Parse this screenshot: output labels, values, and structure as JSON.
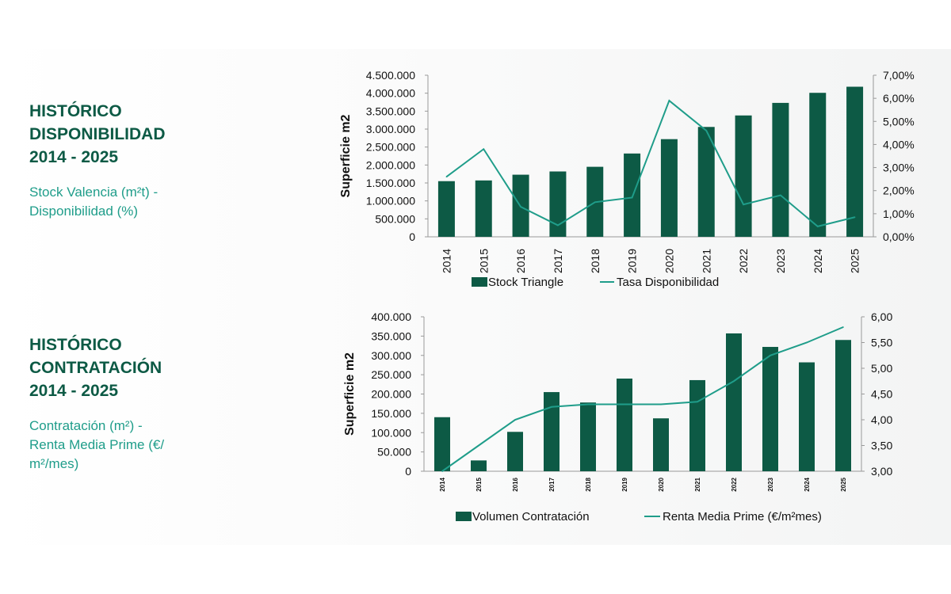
{
  "panels": [
    {
      "title_lines": [
        "HISTÓRICO",
        "DISPONIBILIDAD",
        "2014 - 2025"
      ],
      "subtitle_lines": [
        "Stock Valencia (m²t) -",
        "Disponibilidad (%)"
      ]
    },
    {
      "title_lines": [
        "HISTÓRICO",
        "CONTRATACIÓN",
        "2014 - 2025"
      ],
      "subtitle_lines": [
        "Contratación (m²) -",
        "Renta Media Prime (€/",
        "m²/mes)"
      ]
    }
  ],
  "colors": {
    "bar": "#0d5a45",
    "line": "#1f9d8a",
    "title": "#0d5a45",
    "subtitle": "#1f9d8a"
  },
  "chart_data": [
    {
      "type": "bar",
      "categories": [
        "2014",
        "2015",
        "2016",
        "2017",
        "2018",
        "2019",
        "2020",
        "2021",
        "2022",
        "2023",
        "2024",
        "2025"
      ],
      "series": [
        {
          "name": "Stock Triangle",
          "type": "bar",
          "axis": "left",
          "values": [
            1550000,
            1570000,
            1730000,
            1820000,
            1950000,
            2320000,
            2720000,
            3060000,
            3380000,
            3730000,
            4010000,
            4180000
          ]
        },
        {
          "name": "Tasa Disponibilidad",
          "type": "line",
          "axis": "right",
          "values": [
            2.6,
            3.8,
            1.3,
            0.5,
            1.5,
            1.7,
            5.9,
            4.6,
            1.4,
            1.8,
            0.45,
            0.85
          ]
        }
      ],
      "ylabel": "Superficie m2",
      "ylim": [
        0,
        4500000
      ],
      "yticks": [
        "0",
        "500.000",
        "1.000.000",
        "1.500.000",
        "2.000.000",
        "2.500.000",
        "3.000.000",
        "3.500.000",
        "4.000.000",
        "4.500.000"
      ],
      "y2lim": [
        0,
        7
      ],
      "y2ticks": [
        "0,00%",
        "1,00%",
        "2,00%",
        "3,00%",
        "4,00%",
        "5,00%",
        "6,00%",
        "7,00%"
      ],
      "legend": "bottom"
    },
    {
      "type": "bar",
      "categories": [
        "2014",
        "2015",
        "2016",
        "2017",
        "2018",
        "2019",
        "2020",
        "2021",
        "2022",
        "2023",
        "2024",
        "2025"
      ],
      "series": [
        {
          "name": "Volumen Contratación",
          "type": "bar",
          "axis": "left",
          "values": [
            140000,
            28000,
            102000,
            205000,
            178000,
            240000,
            137000,
            236000,
            357000,
            322000,
            282000,
            340000
          ]
        },
        {
          "name": "Renta Media Prime (€/m²mes)",
          "type": "line",
          "axis": "right",
          "values": [
            3.0,
            3.5,
            4.0,
            4.25,
            4.3,
            4.3,
            4.3,
            4.35,
            4.75,
            5.25,
            5.5,
            5.8
          ]
        }
      ],
      "ylabel": "Superficie m2",
      "ylim": [
        0,
        400000
      ],
      "yticks": [
        "0",
        "50.000",
        "100.000",
        "150.000",
        "200.000",
        "250.000",
        "300.000",
        "350.000",
        "400.000"
      ],
      "y2lim": [
        3,
        6
      ],
      "y2ticks": [
        "3,00",
        "3,50",
        "4,00",
        "4,50",
        "5,00",
        "5,50",
        "6,00"
      ],
      "legend": "bottom"
    }
  ]
}
